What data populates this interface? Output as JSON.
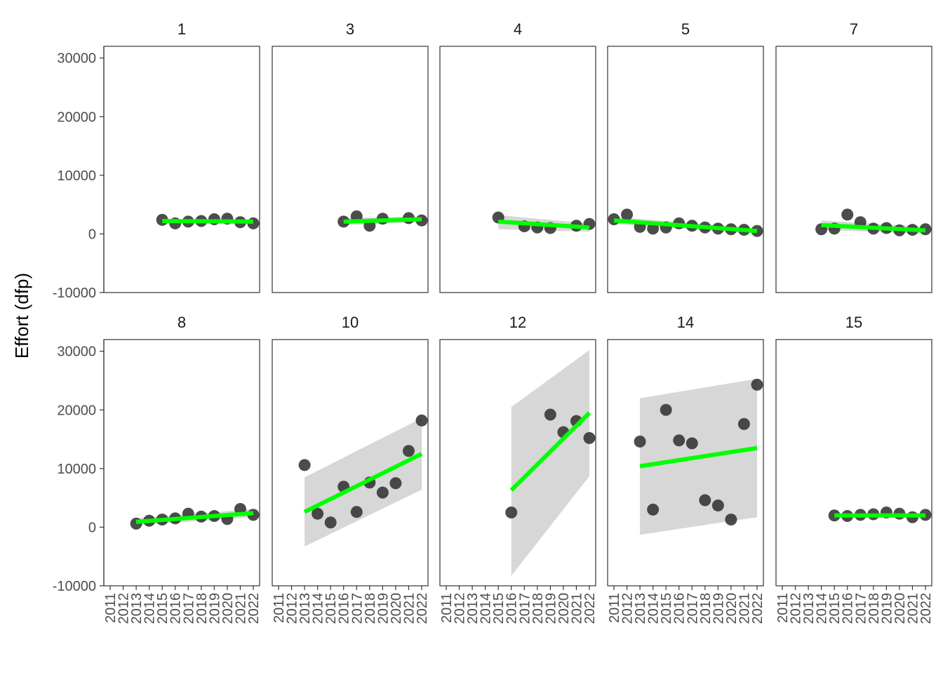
{
  "chart_data": {
    "type": "scatter",
    "ylabel": "Effort (dfp)",
    "xlabel": "",
    "ylim": [
      -10000,
      32000
    ],
    "y_ticks": [
      -10000,
      0,
      10000,
      20000,
      30000
    ],
    "y_tick_labels": [
      "-10000",
      "0",
      "10000",
      "20000",
      "30000"
    ],
    "x_ticks": [
      2011,
      2012,
      2013,
      2014,
      2015,
      2016,
      2017,
      2018,
      2019,
      2020,
      2021,
      2022
    ],
    "x_tick_labels": [
      "2011",
      "2012",
      "2013",
      "2014",
      "2015",
      "2016",
      "2017",
      "2018",
      "2019",
      "2020",
      "2021",
      "2022"
    ],
    "grid": false,
    "point_color": "#333333",
    "fit_color": "#00ff00",
    "band_color": "#d3d3d3",
    "panels": [
      {
        "label": "1",
        "x": [
          2015,
          2016,
          2017,
          2018,
          2019,
          2020,
          2021,
          2022
        ],
        "y": [
          2400,
          1800,
          2100,
          2200,
          2500,
          2600,
          2000,
          1800
        ],
        "fit": [
          2200,
          2100
        ],
        "band_lo": [
          1900,
          1800
        ],
        "band_hi": [
          2500,
          2400
        ]
      },
      {
        "label": "3",
        "x": [
          2016,
          2017,
          2018,
          2019,
          2021,
          2022
        ],
        "y": [
          2100,
          3000,
          1400,
          2600,
          2700,
          2300
        ],
        "fit": [
          2100,
          2500
        ],
        "band_lo": [
          1500,
          2000
        ],
        "band_hi": [
          2700,
          3000
        ]
      },
      {
        "label": "4",
        "x": [
          2015,
          2017,
          2018,
          2019,
          2021,
          2022
        ],
        "y": [
          2800,
          1300,
          1100,
          1000,
          1400,
          1700
        ],
        "fit": [
          2100,
          1100
        ],
        "band_lo": [
          800,
          400
        ],
        "band_hi": [
          3200,
          1800
        ]
      },
      {
        "label": "5",
        "x": [
          2011,
          2012,
          2013,
          2014,
          2015,
          2016,
          2017,
          2018,
          2019,
          2020,
          2021,
          2022
        ],
        "y": [
          2500,
          3300,
          1200,
          900,
          1100,
          1800,
          1400,
          1100,
          900,
          800,
          700,
          500
        ],
        "fit": [
          2300,
          500
        ],
        "band_lo": [
          1700,
          0
        ],
        "band_hi": [
          2900,
          1000
        ]
      },
      {
        "label": "7",
        "x": [
          2014,
          2015,
          2016,
          2017,
          2018,
          2019,
          2020,
          2021,
          2022
        ],
        "y": [
          800,
          900,
          3300,
          2000,
          900,
          1000,
          600,
          700,
          800
        ],
        "fit": [
          1500,
          600
        ],
        "band_lo": [
          700,
          0
        ],
        "band_hi": [
          2300,
          1200
        ]
      },
      {
        "label": "8",
        "x": [
          2013,
          2014,
          2015,
          2016,
          2017,
          2018,
          2019,
          2020,
          2021,
          2022
        ],
        "y": [
          600,
          1100,
          1300,
          1500,
          2300,
          1800,
          1900,
          1400,
          3100,
          2100
        ],
        "fit": [
          900,
          2400
        ],
        "band_lo": [
          300,
          1700
        ],
        "band_hi": [
          1500,
          3100
        ]
      },
      {
        "label": "10",
        "x": [
          2013,
          2014,
          2015,
          2016,
          2017,
          2018,
          2019,
          2020,
          2021,
          2022
        ],
        "y": [
          10600,
          2300,
          800,
          6900,
          2600,
          7600,
          5900,
          7500,
          13000,
          18200
        ],
        "fit": [
          2600,
          12500
        ],
        "band_lo": [
          -3300,
          6400
        ],
        "band_hi": [
          8500,
          18600
        ]
      },
      {
        "label": "12",
        "x": [
          2016,
          2019,
          2020,
          2021,
          2022
        ],
        "y": [
          2500,
          19200,
          16200,
          18100,
          15200
        ],
        "fit": [
          6300,
          19500
        ],
        "band_lo": [
          -8300,
          8700
        ],
        "band_hi": [
          20500,
          30200
        ]
      },
      {
        "label": "14",
        "x": [
          2013,
          2014,
          2015,
          2016,
          2017,
          2018,
          2019,
          2020,
          2021,
          2022
        ],
        "y": [
          14600,
          3000,
          20000,
          14800,
          14300,
          4600,
          3700,
          1300,
          17600,
          24300
        ],
        "fit": [
          10400,
          13500
        ],
        "band_lo": [
          -1300,
          1700
        ],
        "band_hi": [
          22000,
          25300
        ]
      },
      {
        "label": "15",
        "x": [
          2015,
          2016,
          2017,
          2018,
          2019,
          2020,
          2021,
          2022
        ],
        "y": [
          2000,
          1900,
          2100,
          2200,
          2500,
          2300,
          1700,
          2100
        ],
        "fit": [
          2000,
          2000
        ],
        "band_lo": [
          1700,
          1700
        ],
        "band_hi": [
          2300,
          2300
        ]
      }
    ]
  }
}
